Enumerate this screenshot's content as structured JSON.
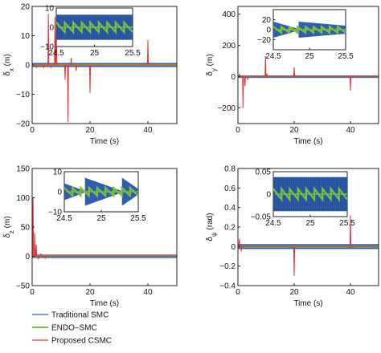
{
  "colors": {
    "traditional": "#2f5eb0",
    "endo": "#7cc13a",
    "proposed": "#e8323a",
    "axis": "#222222"
  },
  "legend": {
    "entries": [
      "Traditional SMC",
      "ENDO–SMC",
      "Proposed CSMC"
    ],
    "placement": "bottom-left"
  },
  "chart_data": [
    {
      "type": "line",
      "xlabel": "Time (s)",
      "ylabel_base": "δ",
      "ylabel_sub": "x",
      "ylabel_unit": " (m)",
      "xlim": [
        0,
        50
      ],
      "ylim": [
        -20,
        20
      ],
      "xticks": [
        "0",
        "20",
        "40"
      ],
      "xtick_values": [
        0,
        20,
        40
      ],
      "yticks": [
        "20",
        "10",
        "0",
        "−10",
        "−20"
      ],
      "ytick_values": [
        20,
        10,
        0,
        -10,
        -20
      ],
      "base_amplitude": {
        "traditional": 0.7,
        "endo": 0.3,
        "proposed": 0.2
      },
      "series": [
        {
          "name": "Traditional SMC",
          "style": "band"
        },
        {
          "name": "ENDO–SMC",
          "style": "band"
        },
        {
          "name": "Proposed CSMC",
          "spikes": [
            [
              1.5,
              -1
            ],
            [
              3.2,
              0.5
            ],
            [
              4.0,
              -1
            ],
            [
              5.0,
              -0.5
            ],
            [
              5.6,
              17.5
            ],
            [
              6.5,
              -1
            ],
            [
              7.9,
              16.5
            ],
            [
              8.4,
              19.0
            ],
            [
              9.2,
              -0.5
            ],
            [
              11.4,
              -5
            ],
            [
              12.4,
              -19.5
            ],
            [
              13.5,
              2.5
            ],
            [
              15.2,
              -2
            ],
            [
              20.0,
              -9.5
            ],
            [
              40.0,
              8.5
            ]
          ]
        }
      ],
      "inset": {
        "xlim": [
          24.5,
          25.5
        ],
        "ylim": [
          -10,
          10
        ],
        "xticks": [
          "24.5",
          "25",
          "25.5"
        ],
        "xtick_values": [
          24.5,
          25,
          25.5
        ],
        "yticks": [
          "10",
          "0",
          "−10"
        ],
        "ytick_values": [
          10,
          0,
          -10
        ],
        "blue_envelope": [
          6.5,
          6.5
        ],
        "green_envelope": [
          2.5,
          2.5
        ],
        "blue_shape": "dense",
        "green_shape": "sawtooth"
      }
    },
    {
      "type": "line",
      "xlabel": "Time (s)",
      "ylabel_base": "δ",
      "ylabel_sub": "y",
      "ylabel_unit": " (m)",
      "xlim": [
        0,
        50
      ],
      "ylim": [
        -300,
        450
      ],
      "xticks": [
        "0",
        "20",
        "40"
      ],
      "xtick_values": [
        0,
        20,
        40
      ],
      "yticks": [
        "400",
        "200",
        "0",
        "−200"
      ],
      "ytick_values": [
        400,
        200,
        0,
        -200
      ],
      "base_amplitude": {
        "traditional": 8,
        "endo": 4,
        "proposed": 3
      },
      "series": [
        {
          "name": "Traditional SMC",
          "style": "band"
        },
        {
          "name": "ENDO–SMC",
          "style": "band"
        },
        {
          "name": "Proposed CSMC",
          "spikes": [
            [
              0.6,
              20
            ],
            [
              1.8,
              -200
            ],
            [
              2.5,
              -60
            ],
            [
              3.5,
              -20
            ],
            [
              9.8,
              130
            ],
            [
              10.3,
              20
            ],
            [
              20.0,
              60
            ],
            [
              40.0,
              -90
            ]
          ]
        }
      ],
      "inset": {
        "xlim": [
          24.5,
          25.5
        ],
        "ylim": [
          -40,
          40
        ],
        "xticks": [
          "24.5",
          "25",
          "25.5"
        ],
        "xtick_values": [
          24.5,
          25,
          25.5
        ],
        "yticks": [
          "20",
          "0",
          "−20"
        ],
        "ytick_values": [
          20,
          0,
          -20
        ],
        "blue_envelope": [
          16,
          8
        ],
        "green_envelope": [
          6,
          6
        ],
        "blue_shape": "wedge",
        "green_shape": "sawtooth"
      }
    },
    {
      "type": "line",
      "xlabel": "Time (s)",
      "ylabel_base": "δ",
      "ylabel_sub": "z",
      "ylabel_unit": " (m)",
      "xlim": [
        0,
        50
      ],
      "ylim": [
        -50,
        150
      ],
      "xticks": [
        "0",
        "20",
        "40"
      ],
      "xtick_values": [
        0,
        20,
        40
      ],
      "yticks": [
        "150",
        "100",
        "50",
        "0",
        "−50"
      ],
      "ytick_values": [
        150,
        100,
        50,
        0,
        -50
      ],
      "base_amplitude": {
        "traditional": 3,
        "endo": 1.5,
        "proposed": 1
      },
      "series": [
        {
          "name": "Traditional SMC",
          "style": "band"
        },
        {
          "name": "ENDO–SMC",
          "style": "band"
        },
        {
          "name": "Proposed CSMC",
          "spikes": [
            [
              0.3,
              100
            ],
            [
              0.9,
              40
            ],
            [
              1.4,
              20
            ],
            [
              2.2,
              -5
            ],
            [
              3.0,
              5
            ],
            [
              4.5,
              -3
            ]
          ]
        }
      ],
      "inset": {
        "xlim": [
          24.5,
          25.5
        ],
        "ylim": [
          -10,
          10
        ],
        "xticks": [
          "24.5",
          "25",
          "25.5"
        ],
        "xtick_values": [
          24.5,
          25,
          25.5
        ],
        "yticks": [
          "10",
          "0",
          "−10"
        ],
        "ytick_values": [
          10,
          0,
          -10
        ],
        "blue_envelope": [
          7,
          7
        ],
        "green_envelope": [
          2,
          2
        ],
        "blue_shape": "scallop",
        "green_shape": "sawtooth"
      }
    },
    {
      "type": "line",
      "xlabel": "Time (s)",
      "ylabel_base": "δ",
      "ylabel_sub": "ψ",
      "ylabel_unit": " (rad)",
      "xlim": [
        0,
        50
      ],
      "ylim": [
        -0.4,
        0.8
      ],
      "xticks": [
        "0",
        "20",
        "40"
      ],
      "xtick_values": [
        0,
        20,
        40
      ],
      "yticks": [
        "0.8",
        "0.6",
        "0.4",
        "0.2",
        "0",
        "−0.2",
        "−0.4"
      ],
      "ytick_values": [
        0.8,
        0.6,
        0.4,
        0.2,
        0,
        -0.2,
        -0.4
      ],
      "base_amplitude": {
        "traditional": 0.025,
        "endo": 0.01,
        "proposed": 0.008
      },
      "series": [
        {
          "name": "Traditional SMC",
          "style": "band"
        },
        {
          "name": "ENDO–SMC",
          "style": "band"
        },
        {
          "name": "Proposed CSMC",
          "spikes": [
            [
              0.5,
              0.08
            ],
            [
              1.2,
              -0.05
            ],
            [
              20.0,
              -0.3
            ],
            [
              40.0,
              0.32
            ]
          ]
        }
      ],
      "inset": {
        "xlim": [
          24.5,
          25.5
        ],
        "ylim": [
          -0.05,
          0.05
        ],
        "xticks": [
          "24.5",
          "25",
          "25.5"
        ],
        "xtick_values": [
          24.5,
          25,
          25.5
        ],
        "yticks": [
          "0.05",
          "0",
          "−0.05"
        ],
        "ytick_values": [
          0.05,
          0,
          -0.05
        ],
        "blue_envelope": [
          0.038,
          0.038
        ],
        "green_envelope": [
          0.012,
          0.012
        ],
        "blue_shape": "dense",
        "green_shape": "sawtooth"
      }
    }
  ]
}
